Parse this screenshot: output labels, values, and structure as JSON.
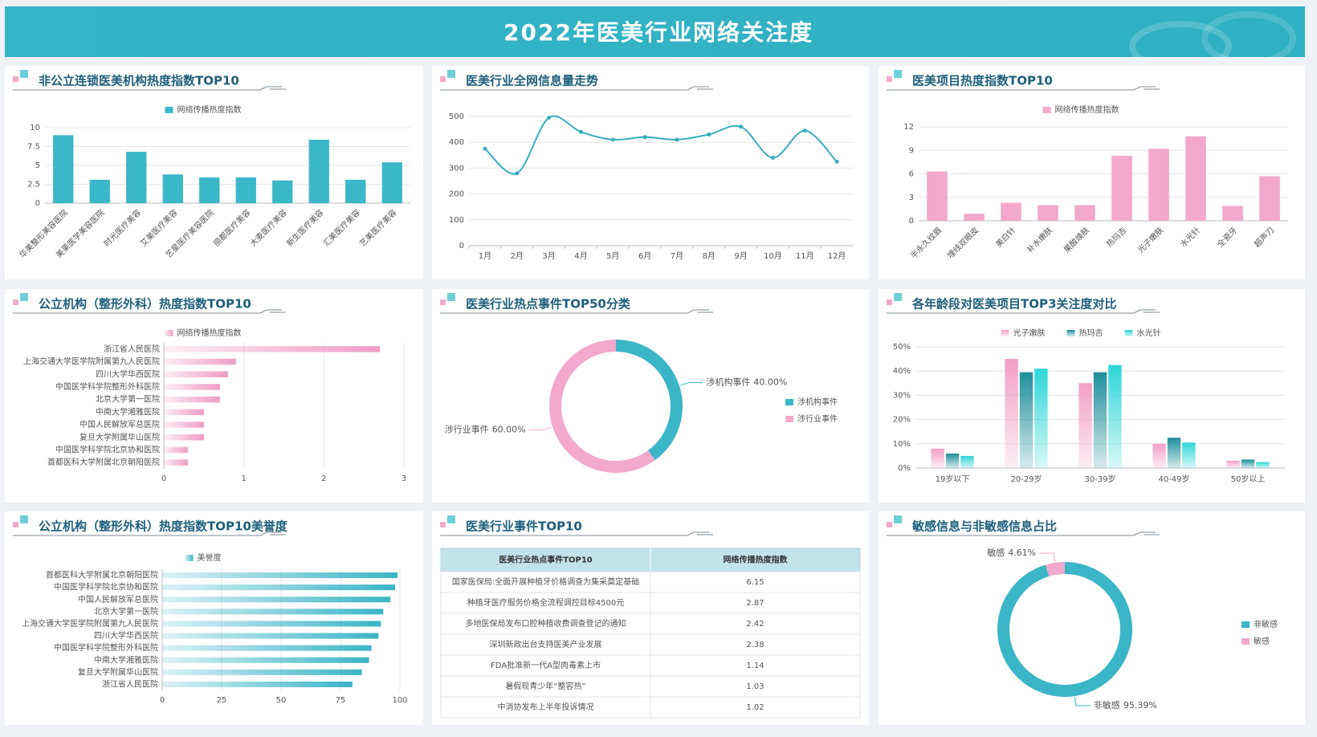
{
  "title": "2022年医美行业网络关注度",
  "chart_data": [
    {
      "type": "bar",
      "title": "非公立连锁医美机构热度指数TOP10",
      "categories": [
        "华美整形美容医院",
        "美莱医学美容医院",
        "时光医疗美容",
        "艾美医疗美容",
        "艺星医疗美容医院",
        "丽都医疗美容",
        "大麦医疗美容",
        "新生医疗美容",
        "汇美医疗美容",
        "艺美医疗美容"
      ],
      "series": [
        {
          "name": "网络传播热度指数",
          "color": "#3ab7c8",
          "values": [
            9,
            3.1,
            6.8,
            3.8,
            3.4,
            3.4,
            3.0,
            8.4,
            3.1,
            5.4
          ]
        }
      ],
      "ylim": [
        0,
        10
      ],
      "yticks": [
        0,
        2.5,
        5,
        7.5,
        10
      ],
      "grid": true
    },
    {
      "type": "line",
      "title": "医美行业全网信息量走势",
      "categories": [
        "1月",
        "2月",
        "3月",
        "4月",
        "5月",
        "6月",
        "7月",
        "8月",
        "9月",
        "10月",
        "11月",
        "12月"
      ],
      "values": [
        375,
        280,
        495,
        440,
        410,
        420,
        410,
        430,
        460,
        340,
        445,
        325
      ],
      "color": "#36adc0",
      "ylim": [
        0,
        500
      ],
      "yticks": [
        0,
        100,
        200,
        300,
        400,
        500
      ],
      "grid": true
    },
    {
      "type": "bar",
      "title": "医美项目热度指数TOP10",
      "categories": [
        "半永久纹眉",
        "埋线双眼皮",
        "美白针",
        "补水嫩肤",
        "果酸焕肤",
        "热玛吉",
        "光子嫩肤",
        "水光针",
        "全瓷牙",
        "超声刀"
      ],
      "series": [
        {
          "name": "网络传播热度指数",
          "color": "#f2a9cb",
          "values": [
            6.3,
            0.9,
            2.3,
            2.0,
            2.0,
            8.3,
            9.2,
            10.8,
            1.9,
            5.7
          ]
        }
      ],
      "ylim": [
        0,
        12
      ],
      "yticks": [
        0,
        3,
        6,
        9,
        12
      ],
      "grid": true
    },
    {
      "type": "bar",
      "horizontal": true,
      "gradient": true,
      "title": "公立机构（整形外科）热度指数TOP10",
      "categories": [
        "浙江省人民医院",
        "上海交通大学医学院附属第九人民医院",
        "四川大学华西医院",
        "中国医学科学院整形外科医院",
        "北京大学第一医院",
        "中南大学湘雅医院",
        "中国人民解放军总医院",
        "复旦大学附属华山医院",
        "中国医学科学院北京协和医院",
        "首都医科大学附属北京朝阳医院"
      ],
      "series": [
        {
          "name": "网络传播热度指数",
          "color": "#f09cc4",
          "values": [
            2.7,
            0.9,
            0.8,
            0.7,
            0.7,
            0.5,
            0.5,
            0.5,
            0.3,
            0.3
          ]
        }
      ],
      "xlim": [
        0,
        3
      ],
      "xticks": [
        0,
        1,
        2,
        3
      ],
      "grid": true
    },
    {
      "type": "donut",
      "title": "医美行业热点事件TOP50分类",
      "categories": [
        "涉机构事件",
        "涉行业事件"
      ],
      "values": [
        40,
        60
      ],
      "value_labels": [
        "40.00%",
        "60.00%"
      ],
      "colors": [
        "#3bb5c8",
        "#f2a9cb"
      ]
    },
    {
      "type": "bar",
      "gradient": true,
      "title": "各年龄段对医美项目TOP3关注度对比",
      "categories": [
        "19岁以下",
        "20-29岁",
        "30-39岁",
        "40-49岁",
        "50岁以上"
      ],
      "series": [
        {
          "name": "光子嫩肤",
          "color": "#f29fc5",
          "values": [
            8,
            45,
            35,
            10,
            3
          ]
        },
        {
          "name": "热玛吉",
          "color": "#1e8e9b",
          "values": [
            6,
            39.5,
            39.5,
            12.5,
            3.5
          ]
        },
        {
          "name": "水光针",
          "color": "#2dd6d6",
          "values": [
            5,
            41,
            42.5,
            10.5,
            2.5
          ]
        }
      ],
      "ylim": [
        0,
        50
      ],
      "yticks": [
        {
          "value": 0,
          "label": "0%"
        },
        {
          "value": 10,
          "label": "10%"
        },
        {
          "value": 20,
          "label": "20%"
        },
        {
          "value": 30,
          "label": "30%"
        },
        {
          "value": 40,
          "label": "40%"
        },
        {
          "value": 50,
          "label": "50%"
        }
      ],
      "grid": true
    },
    {
      "type": "bar",
      "horizontal": true,
      "gradient": true,
      "title": "公立机构（整形外科）热度指数TOP10美誉度",
      "categories": [
        "首都医科大学附属北京朝阳医院",
        "中国医学科学院北京协和医院",
        "中国人民解放军总医院",
        "北京大学第一医院",
        "上海交通大学医学院附属第九人民医院",
        "四川大学华西医院",
        "中国医学科学院整形外科医院",
        "中南大学湘雅医院",
        "复旦大学附属华山医院",
        "浙江省人民医院"
      ],
      "series": [
        {
          "name": "美誉度",
          "color": "#3bb5c6",
          "values": [
            99,
            98,
            96,
            93,
            92,
            91,
            88,
            87,
            84,
            80
          ]
        }
      ],
      "xlim": [
        0,
        100
      ],
      "xticks": [
        0,
        25,
        50,
        75,
        100
      ],
      "grid": true
    },
    {
      "type": "table",
      "title": "医美行业事件TOP10",
      "columns": [
        "医美行业热点事件TOP10",
        "网络传播热度指数"
      ],
      "rows": [
        [
          "国家医保局:全面开展种植牙价格调查为集采奠定基础",
          6.15
        ],
        [
          "种植牙医疗服务价格全流程调控目标4500元",
          2.87
        ],
        [
          "多地医保局发布口腔种植收费调查登记的通知",
          2.42
        ],
        [
          "深圳新政出台支持医美产业发展",
          2.38
        ],
        [
          "FDA批准新一代A型肉毒素上市",
          1.14
        ],
        [
          "暑假现青少年“整容热”",
          1.03
        ],
        [
          "中消协发布上半年投诉情况",
          1.02
        ]
      ]
    },
    {
      "type": "donut",
      "title": "敏感信息与非敏感信息占比",
      "categories": [
        "非敏感",
        "敏感"
      ],
      "values": [
        95.39,
        4.61
      ],
      "value_labels": [
        "95.39%",
        "4.61%"
      ],
      "colors": [
        "#3bb5c8",
        "#f2a9cb"
      ]
    }
  ]
}
